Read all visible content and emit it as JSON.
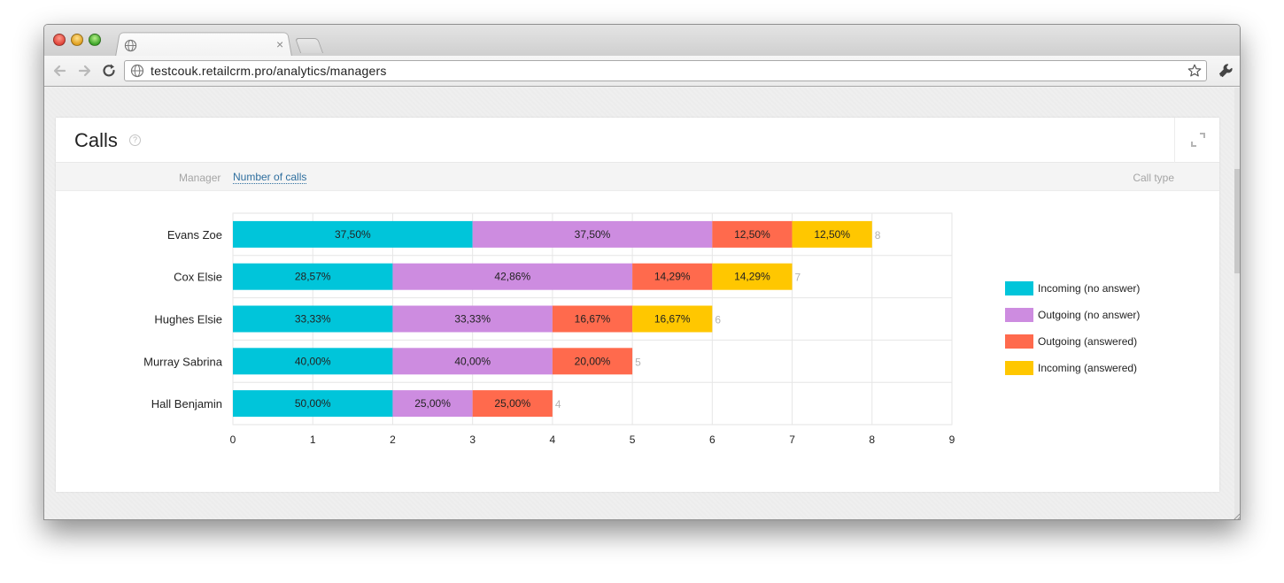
{
  "browser": {
    "url": "testcouk.retailcrm.pro/analytics/managers",
    "tab_close": "×"
  },
  "card": {
    "title": "Calls",
    "help": "?",
    "filters": {
      "manager_label": "Manager",
      "metric_link": "Number of calls",
      "call_type_label": "Call type"
    }
  },
  "colors": {
    "incoming_no_answer": "#00c5da",
    "outgoing_no_answer": "#cd8ce0",
    "outgoing_answered": "#ff6a4d",
    "incoming_answered": "#ffc700"
  },
  "chart_data": {
    "type": "bar",
    "orientation": "horizontal",
    "stacked": true,
    "categories": [
      "Evans Zoe",
      "Cox Elsie",
      "Hughes Elsie",
      "Murray Sabrina",
      "Hall Benjamin"
    ],
    "series": [
      {
        "name": "Incoming (no answer)",
        "values": [
          3,
          2,
          2,
          2,
          2
        ],
        "labels": [
          "37,50%",
          "28,57%",
          "33,33%",
          "40,00%",
          "50,00%"
        ]
      },
      {
        "name": "Outgoing (no answer)",
        "values": [
          3,
          3,
          2,
          2,
          1
        ],
        "labels": [
          "37,50%",
          "42,86%",
          "33,33%",
          "40,00%",
          "25,00%"
        ]
      },
      {
        "name": "Outgoing (answered)",
        "values": [
          1,
          1,
          1,
          1,
          1
        ],
        "labels": [
          "12,50%",
          "14,29%",
          "16,67%",
          "20,00%",
          "25,00%"
        ]
      },
      {
        "name": "Incoming (answered)",
        "values": [
          1,
          1,
          1,
          0,
          0
        ],
        "labels": [
          "12,50%",
          "14,29%",
          "16,67%",
          "",
          ""
        ]
      }
    ],
    "totals": [
      "8",
      "7",
      "6",
      "5",
      "4"
    ],
    "x_ticks": [
      "0",
      "1",
      "2",
      "3",
      "4",
      "5",
      "6",
      "7",
      "8",
      "9"
    ],
    "xlim": [
      0,
      9
    ],
    "grid": true,
    "legend": "right"
  }
}
